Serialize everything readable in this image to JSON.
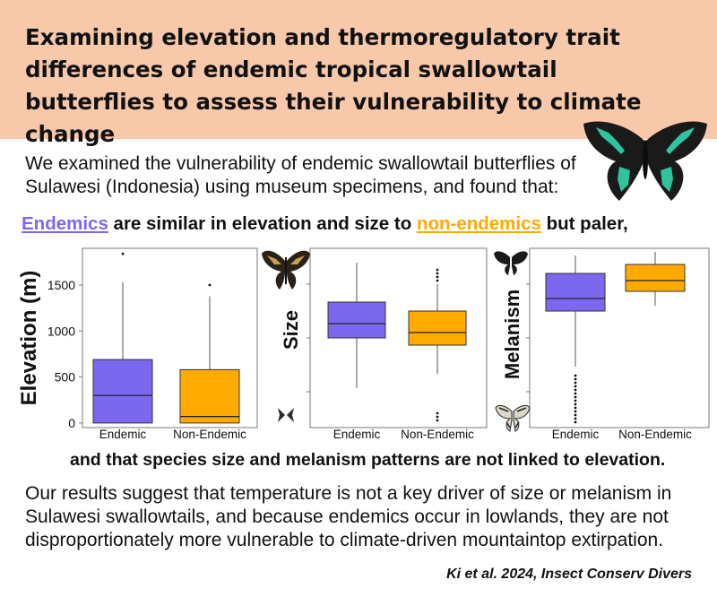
{
  "title": "Examining elevation and thermoregulatory trait differences of endemic tropical swallowtail butterflies to assess their vulnerability to climate change",
  "intro": "We examined the vulnerability of endemic swallowtail butterflies of Sulawesi (Indonesia) using museum specimens, and found that:",
  "finding": {
    "endemics": "Endemics",
    "middle": " are similar in elevation and size to ",
    "non_endemics": "non-endemics",
    "end": " but paler,"
  },
  "finding2": "and that species size and melanism patterns are not linked to elevation.",
  "conclusion": "Our results suggest that temperature is not a key driver of size or melanism in Sulawesi swallowtails, and because endemics occur in lowlands, they are not disproportionately more vulnerable to climate-driven mountaintop extirpation.",
  "citation": "Ki et al. 2024, Insect Conserv Divers",
  "colors": {
    "endemic": "#7b68ee",
    "non_endemic": "#ffaa00",
    "header_bg": "#f8c8aa"
  },
  "chart_data": [
    {
      "type": "box",
      "title": "",
      "ylabel": "Elevation (m)",
      "xlabel": "",
      "ylim": [
        -50,
        1900
      ],
      "yticks": [
        0,
        500,
        1000,
        1500
      ],
      "categories": [
        "Endemic",
        "Non-Endemic"
      ],
      "boxes": [
        {
          "name": "Endemic",
          "min": 0,
          "q1": 0,
          "median": 300,
          "q3": 690,
          "max": 1530,
          "outliers": [
            1840
          ]
        },
        {
          "name": "Non-Endemic",
          "min": 0,
          "q1": 0,
          "median": 70,
          "q3": 580,
          "max": 1380,
          "outliers": [
            1500
          ]
        }
      ]
    },
    {
      "type": "box",
      "title": "",
      "ylabel": "Size",
      "xlabel": "",
      "ylim": [
        0,
        100
      ],
      "yticks": [],
      "categories": [
        "Endemic",
        "Non-Endemic"
      ],
      "boxes": [
        {
          "name": "Endemic",
          "min": 22,
          "q1": 50,
          "median": 58,
          "q3": 70,
          "max": 92,
          "outliers": []
        },
        {
          "name": "Non-Endemic",
          "min": 30,
          "q1": 46,
          "median": 53,
          "q3": 65,
          "max": 80,
          "outliers": [
            82,
            84,
            86,
            88,
            4,
            6,
            8
          ]
        }
      ]
    },
    {
      "type": "box",
      "title": "",
      "ylabel": "Melanism",
      "xlabel": "",
      "ylim": [
        0,
        100
      ],
      "yticks": [],
      "categories": [
        "Endemic",
        "Non-Endemic"
      ],
      "boxes": [
        {
          "name": "Endemic",
          "min": 34,
          "q1": 65,
          "median": 72,
          "q3": 86,
          "max": 96,
          "outliers": [
            29,
            27,
            25,
            23,
            21,
            19,
            17,
            15,
            13,
            11,
            9,
            7,
            5,
            3
          ]
        },
        {
          "name": "Non-Endemic",
          "min": 68,
          "q1": 76,
          "median": 82,
          "q3": 91,
          "max": 98,
          "outliers": []
        }
      ]
    }
  ]
}
